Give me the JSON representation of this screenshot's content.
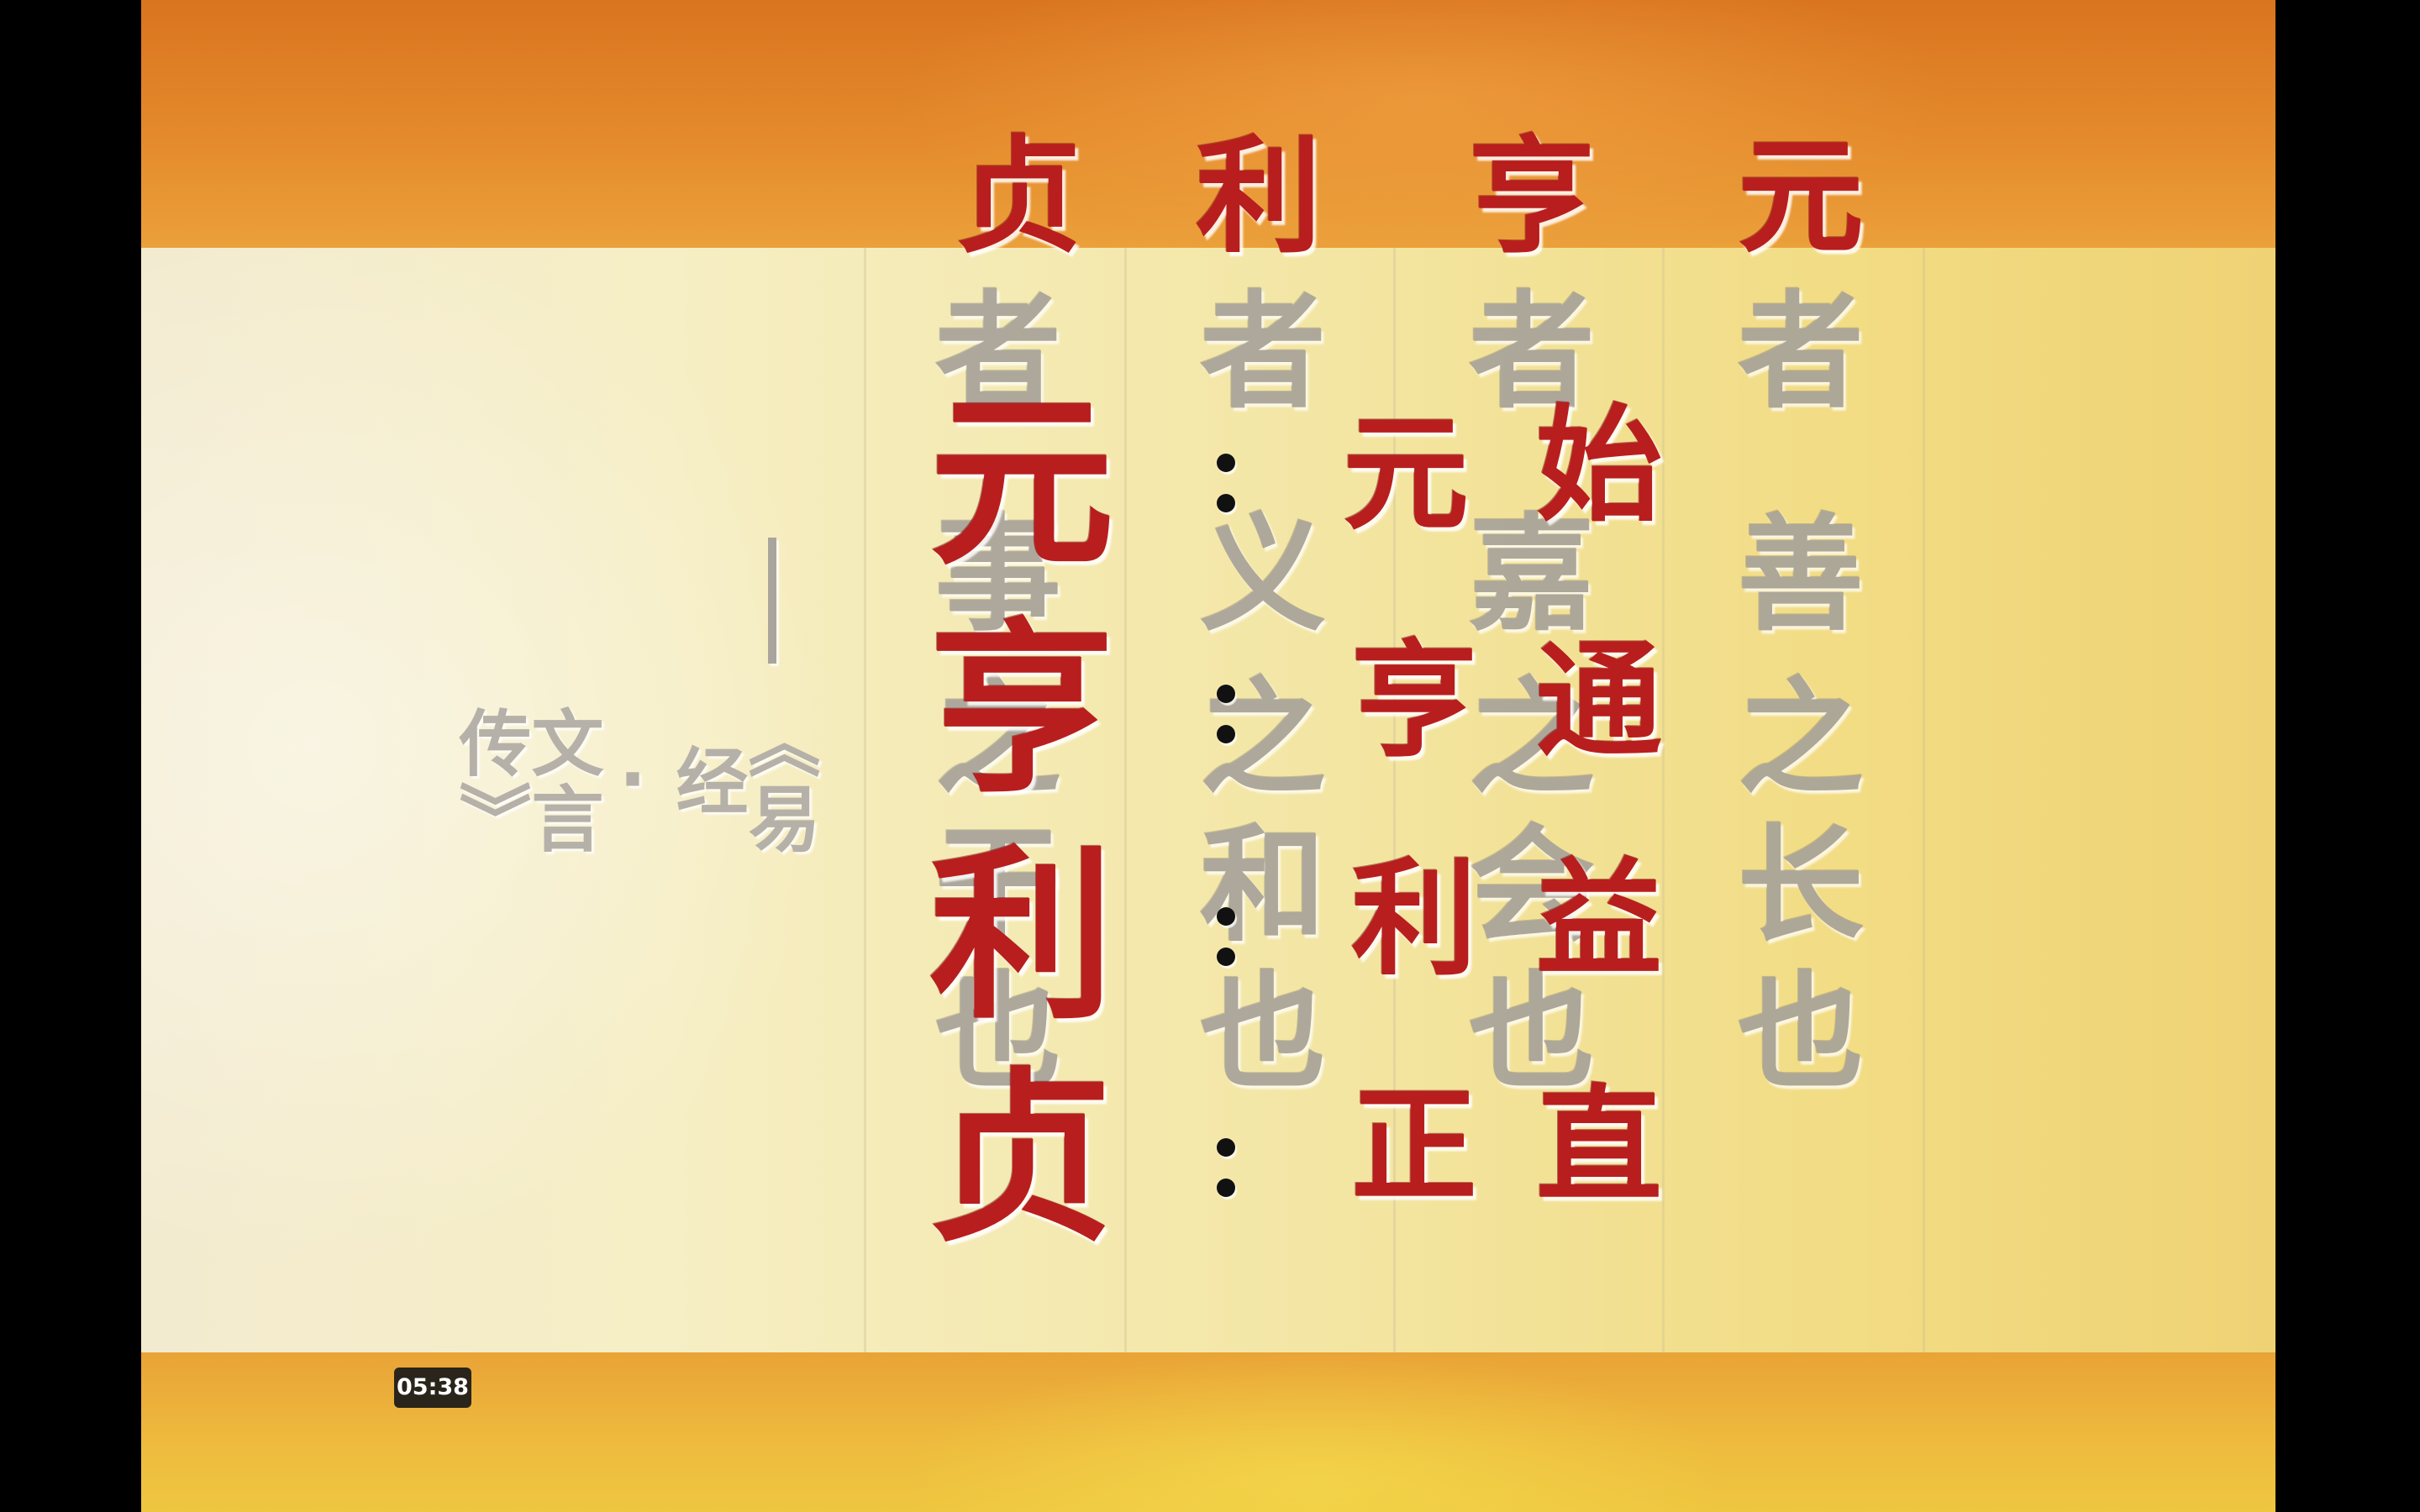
{
  "slide": {
    "gray_columns": [
      {
        "chars": [
          "元",
          "者",
          "善",
          "之",
          "长",
          "也"
        ]
      },
      {
        "chars": [
          "亨",
          "者",
          "嘉",
          "之",
          "会",
          "也"
        ]
      },
      {
        "chars": [
          "利",
          "者",
          "义",
          "之",
          "和",
          "也"
        ]
      },
      {
        "chars": [
          "贞",
          "者",
          "事",
          "之",
          "干",
          "也"
        ]
      }
    ],
    "top_row": [
      "元",
      "亨",
      "利",
      "贞"
    ],
    "definitions": [
      {
        "term": "元",
        "meaning_1": "元",
        "meaning_2": "始"
      },
      {
        "term": "亨",
        "meaning_1": "亨",
        "meaning_2": "通"
      },
      {
        "term": "利",
        "meaning_1": "利",
        "meaning_2": "益"
      },
      {
        "term": "贞",
        "meaning_1": "正",
        "meaning_2": "直"
      }
    ],
    "source": {
      "dash": "—",
      "title": "《易经·文言传》"
    }
  },
  "player": {
    "timestamp": "05:38"
  },
  "colors": {
    "red_text": "#b81e1e",
    "gray_text": "#a8a39a",
    "background_orange": "#e48a2c",
    "paper": "#f6eec4"
  }
}
